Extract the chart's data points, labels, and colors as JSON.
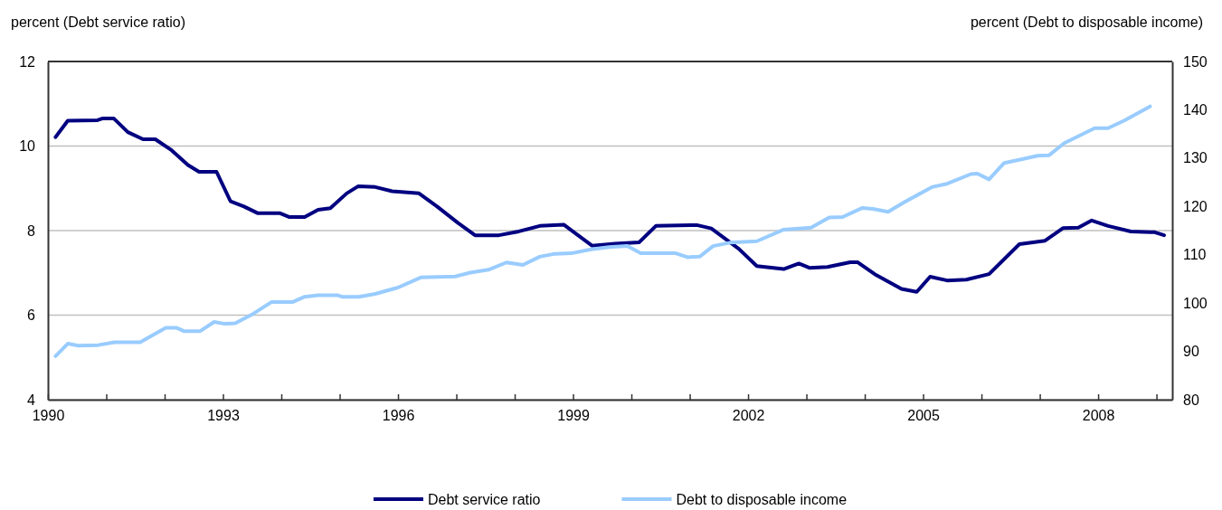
{
  "chart_data": {
    "type": "line",
    "ylabel": "percent (Debt service ratio)",
    "y2label": "percent (Debt to disposable income)",
    "xlim": [
      1990,
      2009.27
    ],
    "xticks": [
      1990,
      {
        "value": 1991,
        "label": null
      },
      {
        "value": 1992,
        "label": null
      },
      1993,
      {
        "value": 1994,
        "label": null
      },
      {
        "value": 1995,
        "label": null
      },
      1996,
      {
        "value": 1997,
        "label": null
      },
      {
        "value": 1998,
        "label": null
      },
      1999,
      {
        "value": 2000,
        "label": null
      },
      {
        "value": 2001,
        "label": null
      },
      2002,
      {
        "value": 2003,
        "label": null
      },
      {
        "value": 2004,
        "label": null
      },
      2005,
      {
        "value": 2006,
        "label": null
      },
      {
        "value": 2007,
        "label": null
      },
      2008,
      {
        "value": 2009,
        "label": null
      }
    ],
    "ylim": [
      4,
      12
    ],
    "yticks": [
      4,
      6,
      8,
      10,
      12
    ],
    "y2lim": [
      80,
      150
    ],
    "y2ticks": [
      80,
      90,
      100,
      110,
      120,
      130,
      140,
      150
    ],
    "grid": "y",
    "legend": "bottom",
    "marker": "none",
    "line_style": "solid",
    "series": [
      {
        "name": "Debt service ratio",
        "color": "#000080",
        "x": [
          1990.13,
          1990.34,
          1990.85,
          1990.93,
          1991.13,
          1991.37,
          1991.63,
          1991.84,
          1992.12,
          1992.4,
          1992.59,
          1992.89,
          1993.13,
          1993.36,
          1993.6,
          1993.98,
          1994.14,
          1994.4,
          1994.63,
          1994.84,
          1995.12,
          1995.32,
          1995.61,
          1995.9,
          1996.36,
          1996.67,
          1997.03,
          1997.32,
          1997.73,
          1998.07,
          1998.43,
          1998.84,
          1999.33,
          1999.72,
          2000.13,
          2000.42,
          2001.12,
          2001.37,
          2001.84,
          2002.15,
          2002.61,
          2002.87,
          2003.05,
          2003.36,
          2003.75,
          2003.88,
          2004.17,
          2004.63,
          2004.89,
          2005.12,
          2005.41,
          2005.74,
          2006.13,
          2006.65,
          2007.09,
          2007.4,
          2007.66,
          2007.89,
          2008.17,
          2008.56,
          2008.97,
          2009.13
        ],
        "values": [
          10.21,
          10.6,
          10.61,
          10.65,
          10.65,
          10.33,
          10.16,
          10.16,
          9.9,
          9.55,
          9.39,
          9.39,
          8.69,
          8.57,
          8.41,
          8.41,
          8.32,
          8.32,
          8.49,
          8.53,
          8.88,
          9.05,
          9.03,
          8.93,
          8.88,
          8.57,
          8.18,
          7.89,
          7.89,
          7.98,
          8.11,
          8.14,
          7.64,
          7.69,
          7.72,
          8.11,
          8.13,
          8.05,
          7.57,
          7.16,
          7.09,
          7.22,
          7.12,
          7.14,
          7.25,
          7.25,
          6.97,
          6.62,
          6.55,
          6.91,
          6.82,
          6.84,
          6.97,
          7.68,
          7.76,
          8.06,
          8.07,
          8.24,
          8.11,
          7.98,
          7.96,
          7.89
        ]
      },
      {
        "name": "Debt to disposable income",
        "color": "#99ccff",
        "axis": "y2",
        "x": [
          1990.13,
          1990.34,
          1990.52,
          1990.86,
          1991.14,
          1991.58,
          1992.02,
          1992.2,
          1992.33,
          1992.61,
          1992.85,
          1993.03,
          1993.21,
          1993.52,
          1993.83,
          1994.19,
          1994.4,
          1994.63,
          1994.97,
          1995.04,
          1995.33,
          1995.61,
          1996.0,
          1996.39,
          1996.98,
          1997.24,
          1997.55,
          1997.86,
          1998.14,
          1998.43,
          1998.69,
          1998.97,
          1999.31,
          1999.62,
          1999.93,
          2000.16,
          2000.76,
          2000.96,
          2001.17,
          2001.4,
          2001.69,
          2002.15,
          2002.61,
          2003.08,
          2003.39,
          2003.62,
          2003.96,
          2004.14,
          2004.4,
          2004.68,
          2005.15,
          2005.41,
          2005.82,
          2005.93,
          2006.13,
          2006.39,
          2006.7,
          2006.96,
          2007.16,
          2007.42,
          2007.94,
          2008.17,
          2008.45,
          2008.89
        ],
        "values": [
          89.0,
          91.6,
          91.2,
          91.3,
          91.9,
          91.9,
          94.9,
          94.9,
          94.2,
          94.2,
          96.1,
          95.7,
          95.8,
          97.8,
          100.2,
          100.2,
          101.3,
          101.6,
          101.6,
          101.3,
          101.3,
          101.9,
          103.2,
          105.3,
          105.5,
          106.3,
          106.9,
          108.4,
          107.9,
          109.6,
          110.2,
          110.3,
          111.1,
          111.6,
          111.8,
          110.3,
          110.3,
          109.5,
          109.6,
          111.8,
          112.5,
          112.8,
          115.2,
          115.6,
          117.7,
          117.8,
          119.7,
          119.5,
          118.9,
          120.9,
          124.0,
          124.7,
          126.7,
          126.8,
          125.6,
          129.0,
          129.8,
          130.5,
          130.6,
          133.1,
          136.2,
          136.2,
          137.8,
          140.7
        ]
      }
    ]
  }
}
